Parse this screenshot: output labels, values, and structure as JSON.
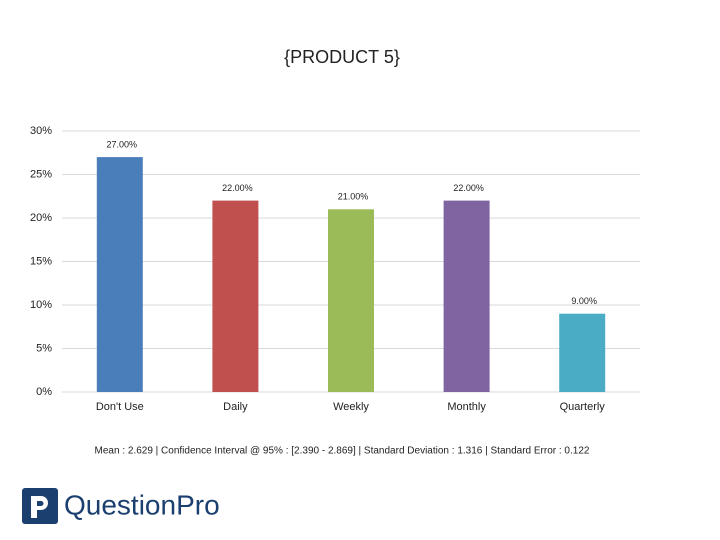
{
  "chart_data": {
    "type": "bar",
    "title": "{PRODUCT 5}",
    "categories": [
      "Don't Use",
      "Daily",
      "Weekly",
      "Monthly",
      "Quarterly"
    ],
    "values": [
      27,
      22,
      21,
      22,
      9
    ],
    "value_labels": [
      "27.00%",
      "22.00%",
      "21.00%",
      "22.00%",
      "9.00%"
    ],
    "colors": [
      "#4a7ebb",
      "#c0504d",
      "#9bbb59",
      "#8064a2",
      "#4bacc6"
    ],
    "ylim": [
      0,
      30
    ],
    "yticks": [
      {
        "value": 0,
        "label": "0%"
      },
      {
        "value": 5,
        "label": "5%"
      },
      {
        "value": 10,
        "label": "10%"
      },
      {
        "value": 15,
        "label": "15%"
      },
      {
        "value": 20,
        "label": "20%"
      },
      {
        "value": 25,
        "label": "25%"
      },
      {
        "value": 30,
        "label": "30%"
      }
    ],
    "grid": true,
    "footnote": "Mean : 2.629  |  Confidence Interval @ 95% : [2.390 - 2.869]  |  Standard Deviation : 1.316  |  Standard Error : 0.122"
  },
  "logo": "QuestionPro"
}
